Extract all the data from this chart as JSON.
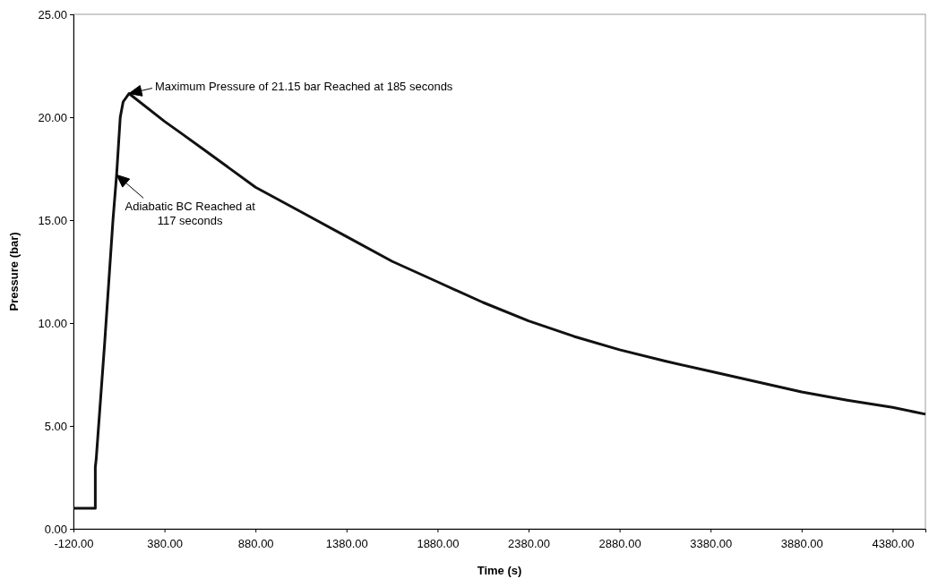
{
  "chart_data": {
    "type": "line",
    "xlabel": "Time (s)",
    "ylabel": "Pressure (bar)",
    "xlim": [
      -120,
      4560
    ],
    "xticks": [
      {
        "value": -120,
        "label": "-120.00"
      },
      {
        "value": 380,
        "label": "380.00"
      },
      {
        "value": 880,
        "label": "880.00"
      },
      {
        "value": 1380,
        "label": "1380.00"
      },
      {
        "value": 1880,
        "label": "1880.00"
      },
      {
        "value": 2380,
        "label": "2380.00"
      },
      {
        "value": 2880,
        "label": "2880.00"
      },
      {
        "value": 3380,
        "label": "3380.00"
      },
      {
        "value": 3880,
        "label": "3880.00"
      },
      {
        "value": 4380,
        "label": "4380.00"
      }
    ],
    "ylim": [
      0,
      25
    ],
    "yticks": [
      {
        "value": 0,
        "label": "0.00"
      },
      {
        "value": 5,
        "label": "5.00"
      },
      {
        "value": 10,
        "label": "10.00"
      },
      {
        "value": 15,
        "label": "15.00"
      },
      {
        "value": 20,
        "label": "20.00"
      },
      {
        "value": 25,
        "label": "25.00"
      }
    ],
    "grid": false,
    "marker": "none",
    "line_style": "solid",
    "series": [
      {
        "color": "#111111",
        "x": [
          -120,
          0,
          0,
          5,
          52,
          97,
          117,
          137,
          153,
          185,
          380,
          475,
          600,
          880,
          1130,
          1380,
          1630,
          1880,
          2130,
          2380,
          2630,
          2880,
          3130,
          3380,
          3630,
          3880,
          4130,
          4380,
          4560
        ],
        "values": [
          1,
          1,
          3,
          3.4,
          9.1,
          15,
          17.2,
          20,
          20.75,
          21.15,
          19.8,
          19.2,
          18.4,
          16.6,
          15.4,
          14.2,
          13.0,
          12.0,
          11.0,
          10.1,
          9.35,
          8.7,
          8.15,
          7.65,
          7.15,
          6.65,
          6.25,
          5.9,
          5.57
        ]
      }
    ],
    "annotations": [
      {
        "text": "Maximum Pressure of 21.15 bar Reached at 185 seconds",
        "x": 185,
        "y": 21.15
      },
      {
        "text": "Adiabatic BC Reached at\n117 seconds",
        "x": 117,
        "y": 17.2
      }
    ]
  }
}
